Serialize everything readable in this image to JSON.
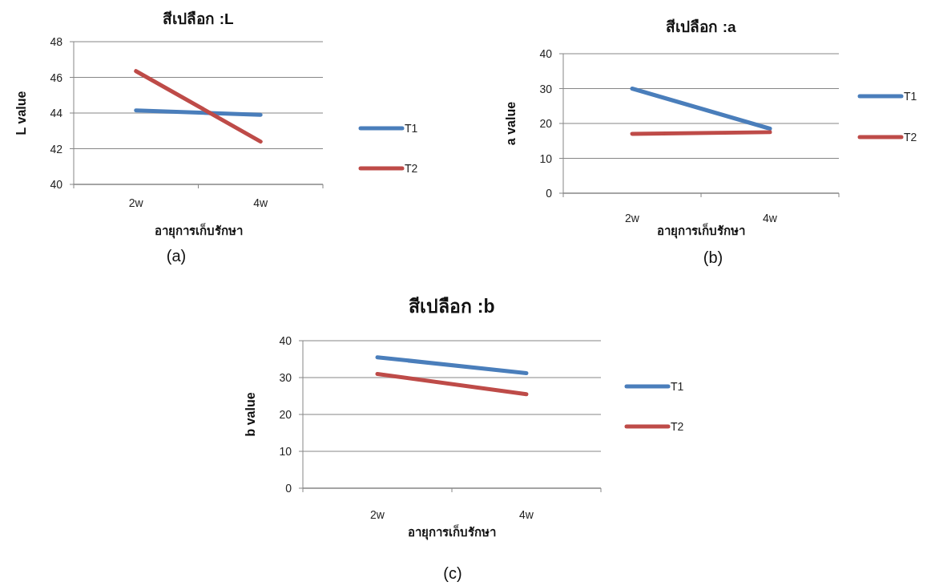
{
  "chart_data": [
    {
      "type": "line",
      "title": "สีเปลือก :L",
      "xlabel": "อายุการเก็บรักษา",
      "ylabel": "L value",
      "categories": [
        "2w",
        "4w"
      ],
      "series": [
        {
          "name": "T1",
          "color": "#4a7ebb",
          "values": [
            44.15,
            43.9
          ]
        },
        {
          "name": "T2",
          "color": "#be4b48",
          "values": [
            46.35,
            42.4
          ]
        }
      ],
      "ylim": [
        40,
        48
      ],
      "yticks": [
        40,
        42,
        44,
        46,
        48
      ],
      "grid": "y",
      "legend": "right",
      "annotations": [
        "(a)"
      ]
    },
    {
      "type": "line",
      "title": "สีเปลือก :a",
      "xlabel": "อายุการเก็บรักษา",
      "ylabel": "a value",
      "categories": [
        "2w",
        "4w"
      ],
      "series": [
        {
          "name": "T1",
          "color": "#4a7ebb",
          "values": [
            30,
            18.5
          ]
        },
        {
          "name": "T2",
          "color": "#be4b48",
          "values": [
            17,
            17.5
          ]
        }
      ],
      "ylim": [
        0,
        40
      ],
      "yticks": [
        0,
        10,
        20,
        30,
        40
      ],
      "grid": "y",
      "legend": "right",
      "annotations": [
        "(b)"
      ]
    },
    {
      "type": "line",
      "title": "สีเปลือก :b",
      "xlabel": "อายุการเก็บรักษา",
      "ylabel": "b value",
      "categories": [
        "2w",
        "4w"
      ],
      "series": [
        {
          "name": "T1",
          "color": "#4a7ebb",
          "values": [
            35.5,
            31.2
          ]
        },
        {
          "name": "T2",
          "color": "#be4b48",
          "values": [
            31,
            25.5
          ]
        }
      ],
      "ylim": [
        0,
        40
      ],
      "yticks": [
        0,
        10,
        20,
        30,
        40
      ],
      "grid": "y",
      "legend": "right",
      "annotations": [
        "(c)"
      ]
    }
  ]
}
